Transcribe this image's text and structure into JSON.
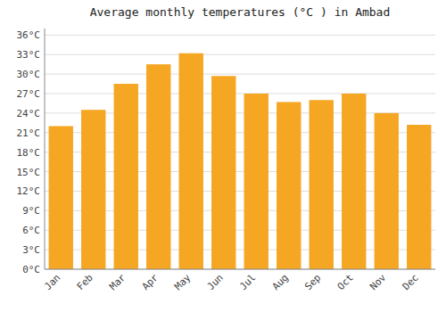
{
  "chart_data": {
    "type": "bar",
    "title": "Average monthly temperatures (°C ) in Ambad",
    "categories": [
      "Jan",
      "Feb",
      "Mar",
      "Apr",
      "May",
      "Jun",
      "Jul",
      "Aug",
      "Sep",
      "Oct",
      "Nov",
      "Dec"
    ],
    "values": [
      22.0,
      24.5,
      28.5,
      31.5,
      33.2,
      29.7,
      27.0,
      25.7,
      26.0,
      27.0,
      24.0,
      22.2
    ],
    "color": "#F5A623",
    "ylim": [
      0,
      37
    ],
    "yticks": [
      {
        "value": 0,
        "label": "0°C"
      },
      {
        "value": 3,
        "label": "3°C"
      },
      {
        "value": 6,
        "label": "6°C"
      },
      {
        "value": 9,
        "label": "9°C"
      },
      {
        "value": 12,
        "label": "12°C"
      },
      {
        "value": 15,
        "label": "15°C"
      },
      {
        "value": 18,
        "label": "18°C"
      },
      {
        "value": 21,
        "label": "21°C"
      },
      {
        "value": 24,
        "label": "24°C"
      },
      {
        "value": 27,
        "label": "27°C"
      },
      {
        "value": 30,
        "label": "30°C"
      },
      {
        "value": 33,
        "label": "33°C"
      },
      {
        "value": 36,
        "label": "36°C"
      }
    ],
    "grid": true
  }
}
